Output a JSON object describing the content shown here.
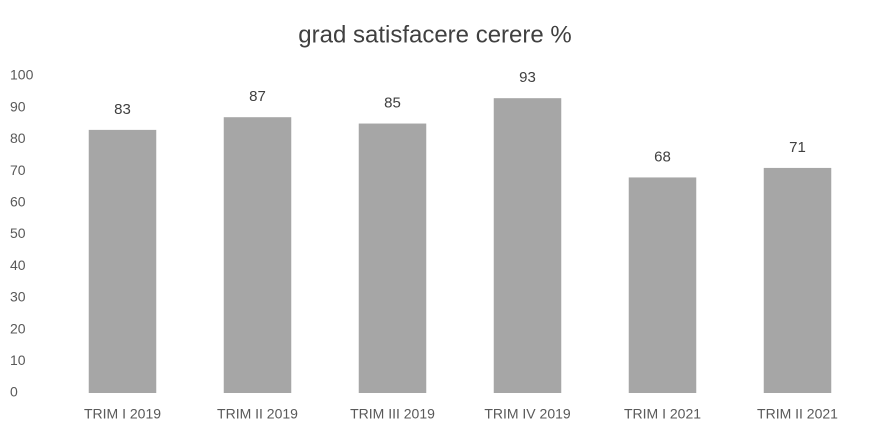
{
  "chart_data": {
    "type": "bar",
    "title": "grad satisfacere cerere %",
    "categories": [
      "TRIM I 2019",
      "TRIM II 2019",
      "TRIM III 2019",
      "TRIM IV 2019",
      "TRIM I 2021",
      "TRIM II 2021"
    ],
    "values": [
      83,
      87,
      85,
      93,
      68,
      71
    ],
    "color": "#a6a6a6",
    "ylim": [
      0,
      100
    ],
    "yticks": [
      0,
      10,
      20,
      30,
      40,
      50,
      60,
      70,
      80,
      90,
      100
    ],
    "grid": false
  }
}
